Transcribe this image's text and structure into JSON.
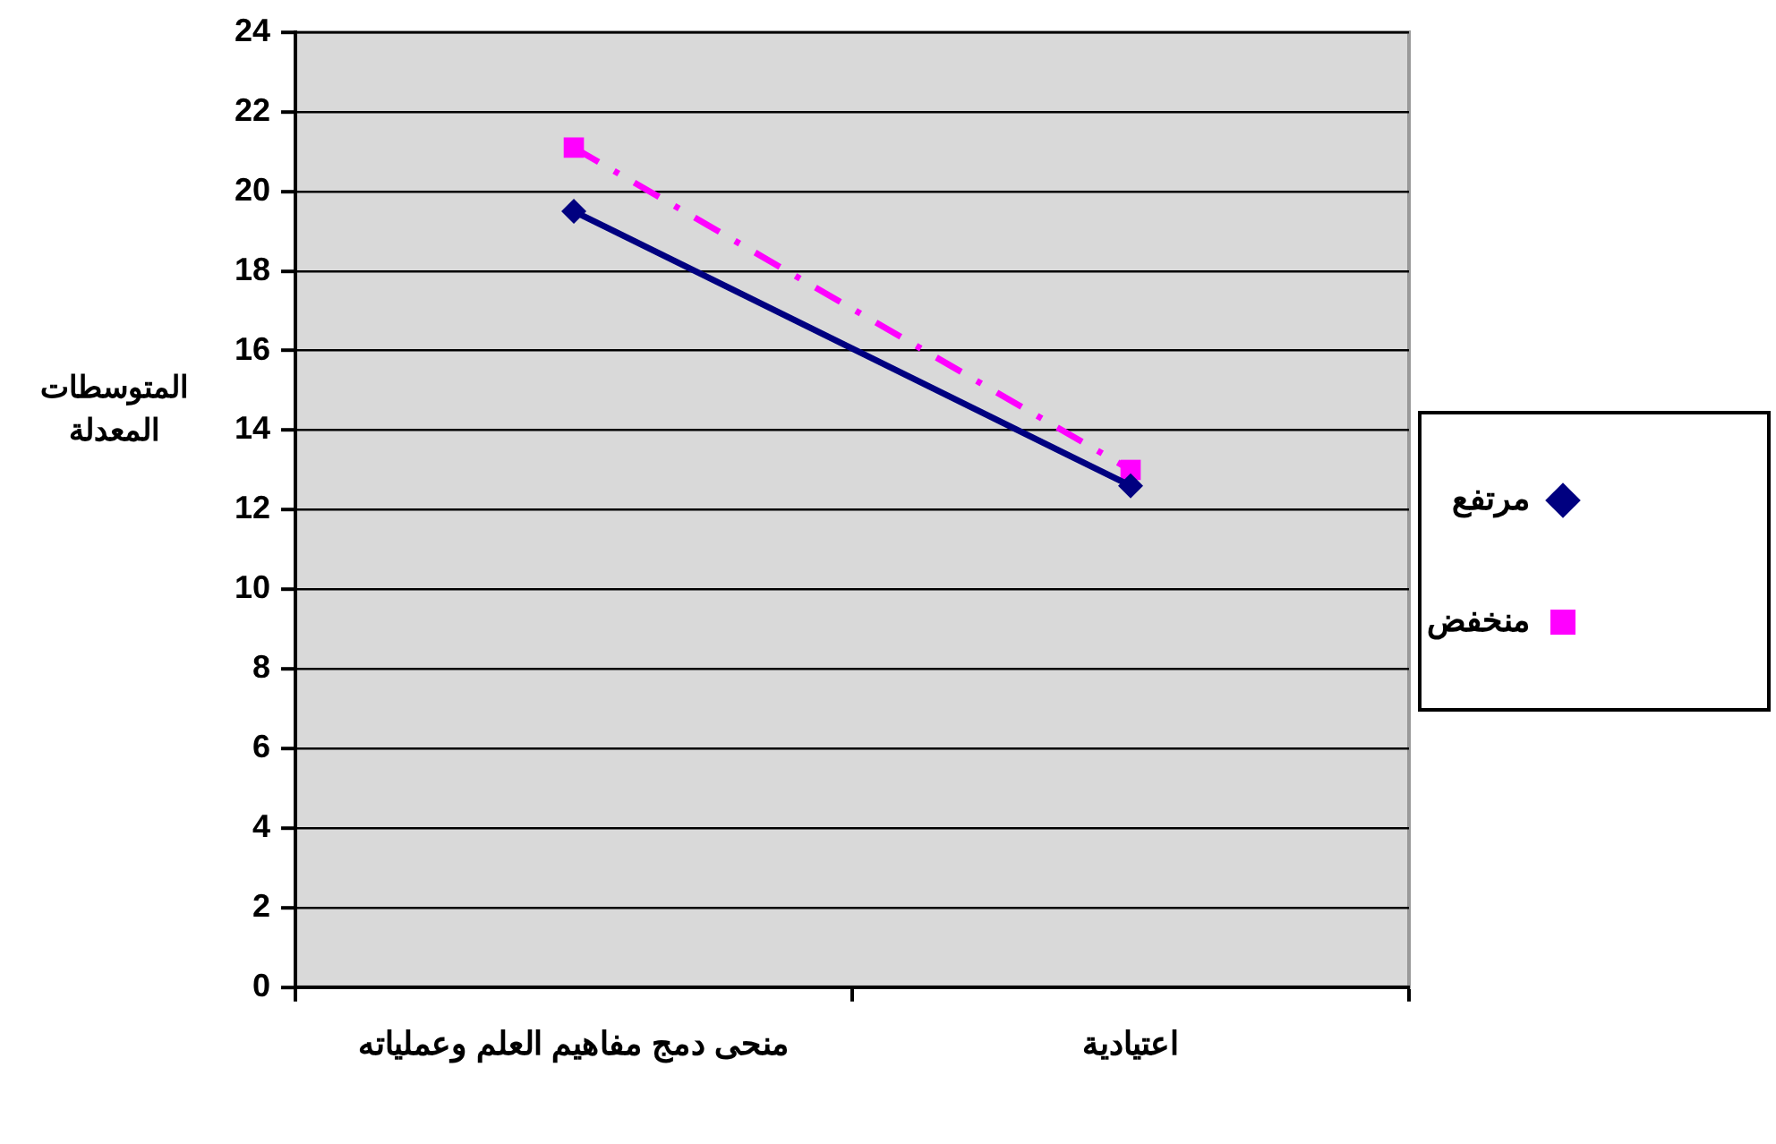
{
  "chart_data": {
    "type": "line",
    "ylabel": "المتوسطات المعدلة",
    "categories": [
      "منحى دمج مفاهيم العلم وعملياته",
      "اعتيادية"
    ],
    "series": [
      {
        "name": "مرتفع",
        "color": "#000080",
        "values": [
          19.5,
          12.6
        ],
        "marker": "diamond",
        "line_style": "solid"
      },
      {
        "name": "منخفض",
        "color": "#ff00ff",
        "values": [
          21.1,
          13.0
        ],
        "marker": "square",
        "line_style": "dashed"
      }
    ],
    "ylim": [
      0,
      24
    ],
    "yticks": [
      0,
      2,
      4,
      6,
      8,
      10,
      12,
      14,
      16,
      18,
      20,
      22,
      24
    ],
    "grid": "y",
    "legend": "right"
  }
}
